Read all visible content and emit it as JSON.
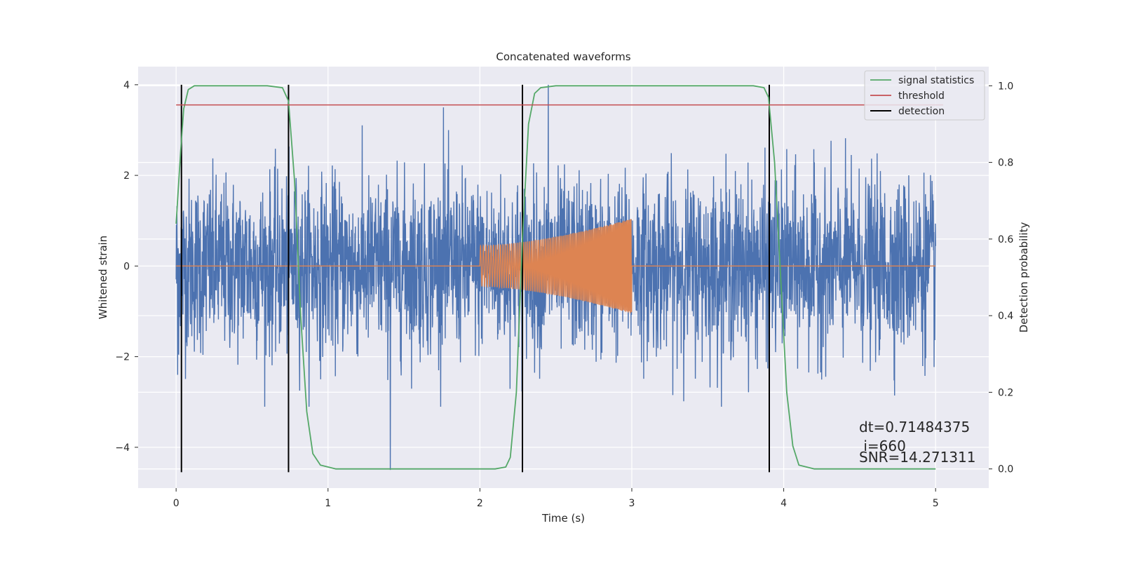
{
  "chart_data": {
    "type": "line",
    "title": "Concatenated waveforms",
    "xlabel": "Time (s)",
    "ylabel_left": "Whitened strain",
    "ylabel_right": "Detection probability",
    "xlim": [
      -0.25,
      5.35
    ],
    "ylim_left": [
      -4.9,
      4.4
    ],
    "ylim_right": [
      -0.05,
      1.05
    ],
    "x_ticks": [
      0,
      1,
      2,
      3,
      4,
      5
    ],
    "y_ticks_left": [
      -4,
      -2,
      0,
      2,
      4
    ],
    "y_ticks_left_labels": [
      "−4",
      "−2",
      "0",
      "2",
      "4"
    ],
    "y_ticks_right": [
      0.0,
      0.2,
      0.4,
      0.6,
      0.8,
      1.0
    ],
    "y_ticks_right_labels": [
      "0.0",
      "0.2",
      "0.4",
      "0.6",
      "0.8",
      "1.0"
    ],
    "grid": true,
    "legend_position": "top-right",
    "colors": {
      "noise": "#4c72b0",
      "template": "#dd8452",
      "signal_statistics": "#55a868",
      "threshold": "#c44e52",
      "detection": "#000000",
      "axes_bg": "#eaeaf2",
      "grid": "#ffffff"
    },
    "series": [
      {
        "name": "",
        "axis": "left",
        "role": "whitened noise",
        "x_range": [
          0,
          5
        ],
        "amplitude_envelope": 2.7,
        "notable_spikes": [
          [
            0.01,
            -2.4
          ],
          [
            1.41,
            -4.5
          ],
          [
            2.45,
            4.0
          ],
          [
            1.76,
            3.5
          ]
        ]
      },
      {
        "name": "",
        "axis": "left",
        "role": "injected chirp",
        "x_range": [
          0,
          5
        ],
        "active_interval": [
          2.0,
          3.0
        ],
        "amplitude_start": 0.45,
        "amplitude_end": 1.05
      },
      {
        "name": "signal statistics",
        "axis": "right",
        "x": [
          0,
          0.03,
          0.05,
          0.08,
          0.12,
          0.2,
          0.6,
          0.7,
          0.74,
          0.78,
          0.82,
          0.86,
          0.9,
          0.95,
          1.05,
          2.1,
          2.17,
          2.2,
          2.24,
          2.28,
          2.32,
          2.36,
          2.4,
          2.5,
          3.8,
          3.87,
          3.9,
          3.94,
          3.98,
          4.02,
          4.06,
          4.1,
          4.2,
          5.0
        ],
        "values": [
          0.64,
          0.83,
          0.94,
          0.99,
          1.0,
          1.0,
          1.0,
          0.995,
          0.96,
          0.75,
          0.4,
          0.15,
          0.04,
          0.01,
          0.0,
          0.0,
          0.005,
          0.03,
          0.2,
          0.6,
          0.9,
          0.98,
          0.995,
          1.0,
          1.0,
          0.995,
          0.97,
          0.8,
          0.5,
          0.2,
          0.06,
          0.01,
          0.0,
          0.0
        ]
      },
      {
        "name": "threshold",
        "axis": "right",
        "x": [
          0,
          5.05
        ],
        "values": [
          0.95,
          0.95
        ]
      },
      {
        "name": "detection",
        "axis": "left",
        "x_positions": [
          0.035,
          0.74,
          2.28,
          3.905
        ],
        "y_range": [
          -4.55,
          4.0
        ]
      }
    ],
    "legend": [
      "signal statistics",
      "threshold",
      "detection"
    ],
    "annotations": [
      "dt=0.71484375",
      " i=660",
      "SNR=14.271311"
    ]
  }
}
